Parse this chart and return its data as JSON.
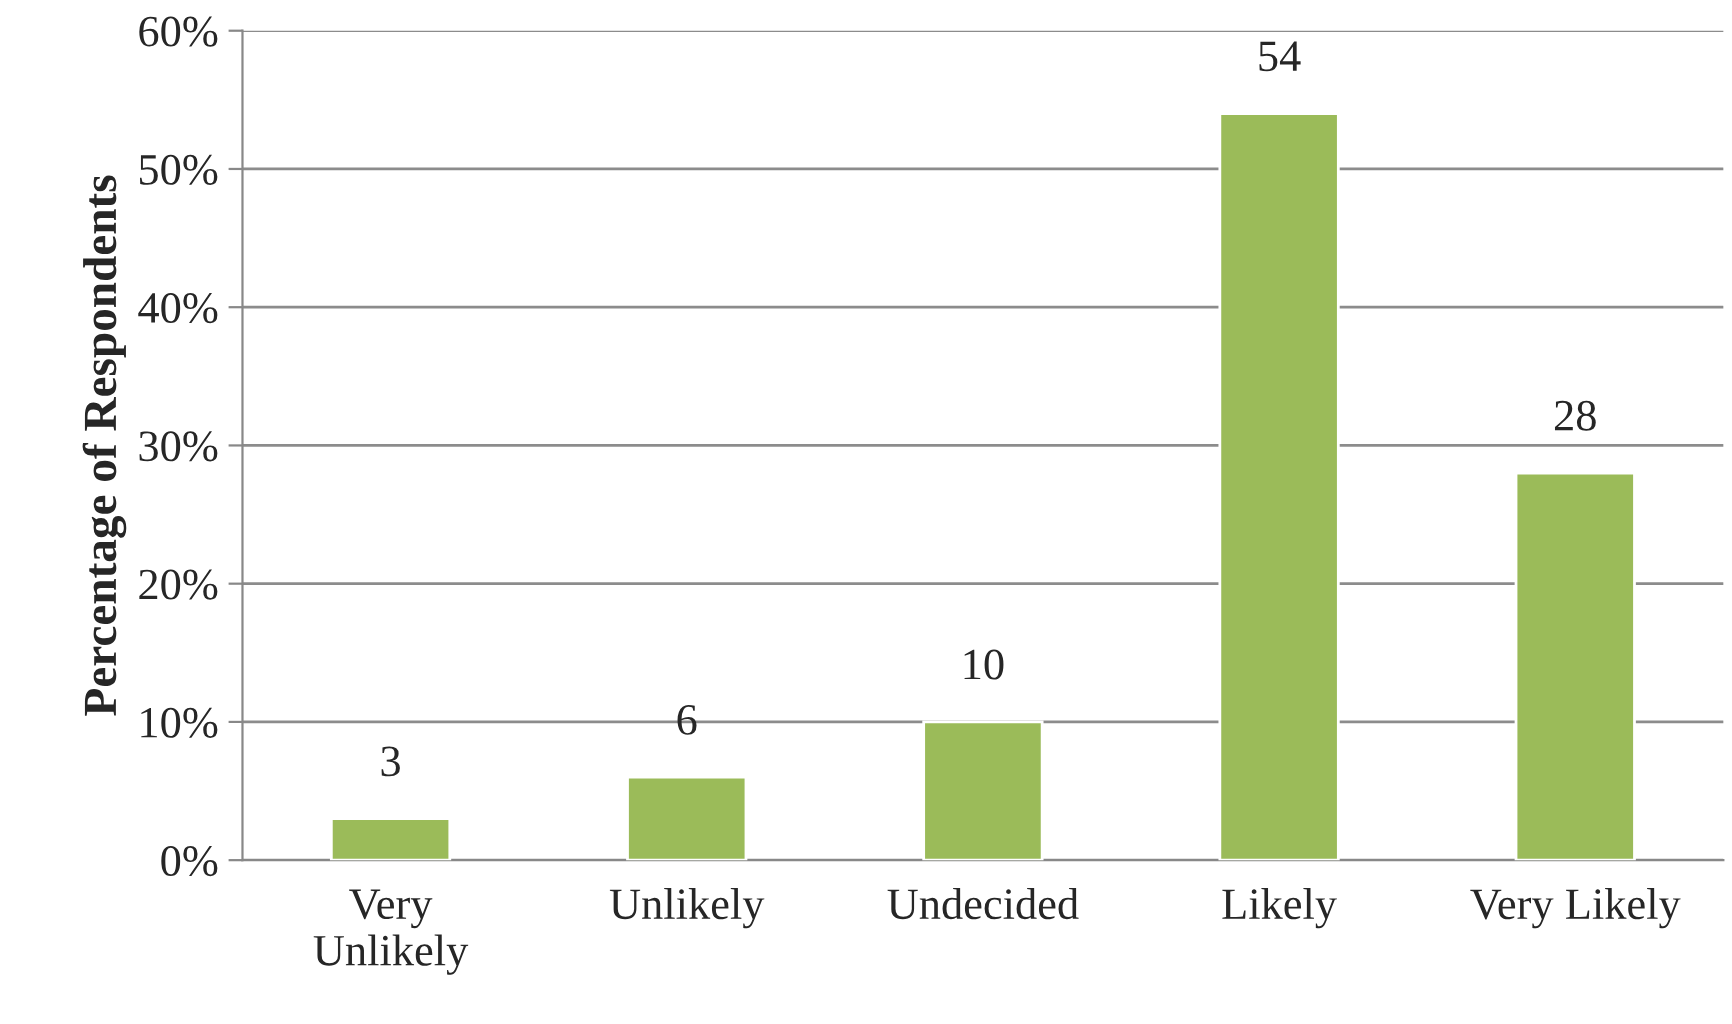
{
  "chart_data": {
    "type": "bar",
    "ylabel": "Percentage of Respondents",
    "categories": [
      "Very\nUnlikely",
      "Unlikely",
      "Undecided",
      "Likely",
      "Very Likely"
    ],
    "values": [
      3,
      6,
      10,
      54,
      28
    ],
    "color": "#9bbb59",
    "data_labels": true,
    "ylim": [
      0,
      60
    ],
    "yticks": [
      {
        "value": 0,
        "label": "0%"
      },
      {
        "value": 10,
        "label": "10%"
      },
      {
        "value": 20,
        "label": "20%"
      },
      {
        "value": 30,
        "label": "30%"
      },
      {
        "value": 40,
        "label": "40%"
      },
      {
        "value": 50,
        "label": "50%"
      },
      {
        "value": 60,
        "label": "60%"
      }
    ],
    "grid": "y"
  }
}
